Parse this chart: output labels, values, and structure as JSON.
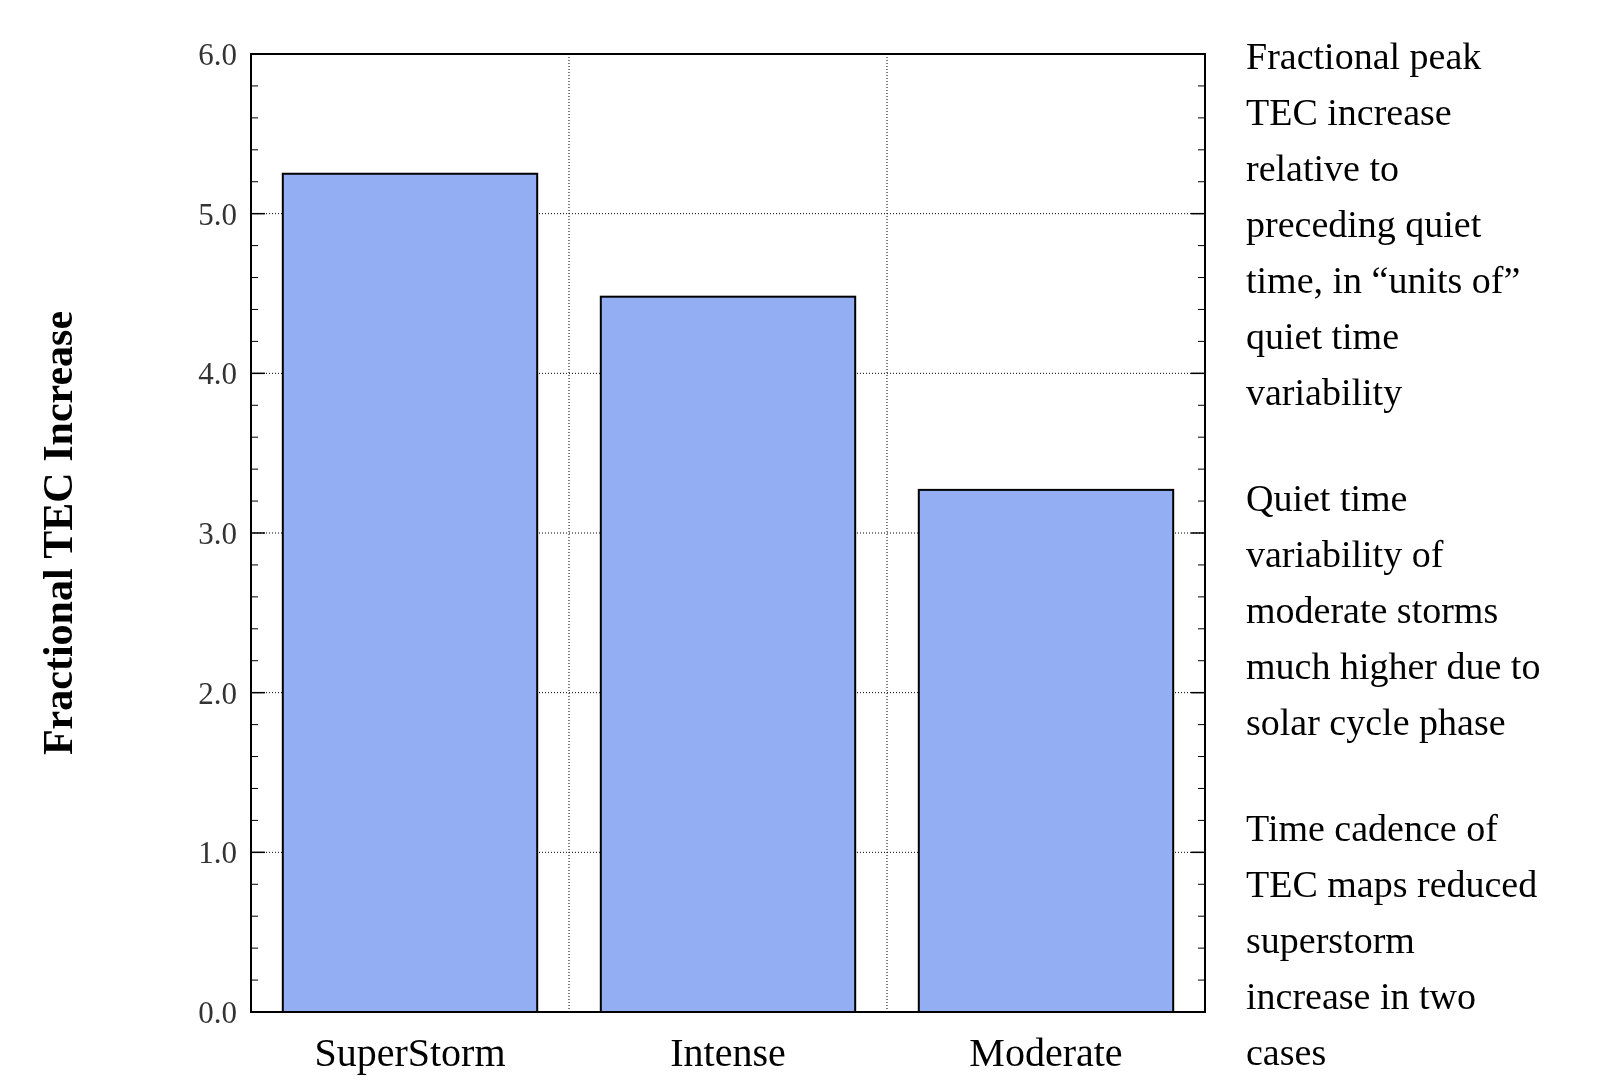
{
  "chart_data": {
    "type": "bar",
    "ylabel": "Fractional TEC Increase",
    "categories": [
      "SuperStorm",
      "Intense",
      "Moderate"
    ],
    "values": [
      5.25,
      4.48,
      3.27
    ],
    "color": "#93aef2",
    "ylim": [
      0,
      6
    ],
    "yticks": [
      {
        "value": 0,
        "label": "0.0"
      },
      {
        "value": 1,
        "label": "1.0"
      },
      {
        "value": 2,
        "label": "2.0"
      },
      {
        "value": 3,
        "label": "3.0"
      },
      {
        "value": 4,
        "label": "4.0"
      },
      {
        "value": 5,
        "label": "5.0"
      },
      {
        "value": 6,
        "label": "6.0"
      }
    ],
    "grid": true,
    "annotations": [
      "Fractional peak\nTEC increase\nrelative to\npreceding quiet\ntime, in “units of”\nquiet time\nvariability",
      "Quiet time\nvariability of\nmoderate storms\nmuch higher due to\nsolar cycle phase",
      "Time cadence of\nTEC maps reduced\nsuperstorm\nincrease in two\ncases"
    ]
  }
}
